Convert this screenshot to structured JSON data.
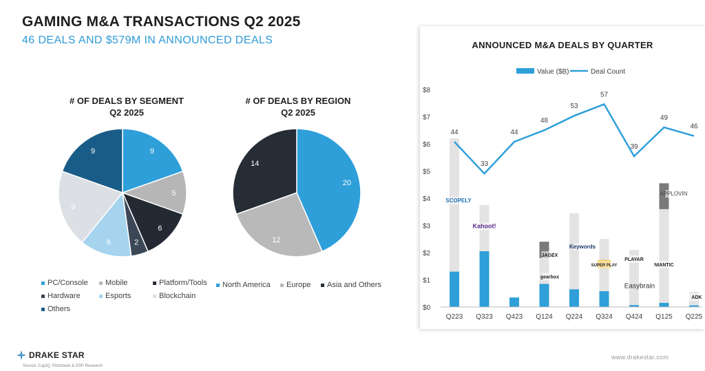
{
  "header": {
    "title": "GAMING M&A TRANSACTIONS Q2 2025",
    "subtitle": "46 DEALS AND $579M IN ANNOUNCED DEALS"
  },
  "footer": {
    "brand": "DRAKE STAR",
    "source": "Source: CapIQ, Pitchbook & DSP Research",
    "website": "www.drakestar.com"
  },
  "chart_data": [
    {
      "type": "pie",
      "title": "# OF DEALS BY SEGMENT\nQ2 2025",
      "title_lines": [
        "# OF DEALS BY SEGMENT",
        "Q2 2025"
      ],
      "start": "12 o'clock, clockwise",
      "slices": [
        {
          "label": "PC/Console",
          "value": 9,
          "color": "#2e9fd9"
        },
        {
          "label": "Mobile",
          "value": 5,
          "color": "#b6b6b6"
        },
        {
          "label": "Platform/Tools",
          "value": 6,
          "color": "#232a34"
        },
        {
          "label": "Hardware",
          "value": 2,
          "color": "#3b4656"
        },
        {
          "label": "Esports",
          "value": 6,
          "color": "#a6d4ef"
        },
        {
          "label": "Blockchain",
          "value": 9,
          "color": "#dcdfe3"
        },
        {
          "label": "Others",
          "value": 9,
          "color": "#1a5c88"
        }
      ],
      "legend": [
        "PC/Console",
        "Mobile",
        "Platform/Tools",
        "Hardware",
        "Esports",
        "Blockchain",
        "Others"
      ]
    },
    {
      "type": "pie",
      "title": "# OF DEALS BY REGION\nQ2 2025",
      "title_lines": [
        "# OF DEALS BY REGION",
        "Q2 2025"
      ],
      "start": "12 o'clock, clockwise",
      "slices": [
        {
          "label": "North America",
          "value": 20,
          "color": "#2e9fd9"
        },
        {
          "label": "Europe",
          "value": 12,
          "color": "#b9b9b9"
        },
        {
          "label": "Asia and Others",
          "value": 14,
          "color": "#262d37"
        }
      ],
      "legend": [
        "North America",
        "Europe",
        "Asia and Others"
      ]
    },
    {
      "type": "bar+line",
      "title": "ANNOUNCED M&A DEALS BY QUARTER",
      "categories": [
        "Q223",
        "Q323",
        "Q423",
        "Q124",
        "Q224",
        "Q324",
        "Q424",
        "Q125",
        "Q225"
      ],
      "series": [
        {
          "name": "Value ($B)",
          "type": "bar",
          "color": "#2e9fd9",
          "values": [
            1.3,
            2.05,
            0.35,
            0.85,
            0.65,
            0.58,
            0.07,
            0.15,
            0.06
          ]
        },
        {
          "name": "Deal Count",
          "type": "line",
          "color": "#2e9fd9",
          "values": [
            44,
            33,
            44,
            48,
            53,
            57,
            39,
            49,
            46
          ]
        }
      ],
      "total_values_background": [
        6.2,
        3.75,
        0.35,
        2.4,
        3.45,
        2.5,
        2.1,
        4.55,
        0.55
      ],
      "background_color": "#e3e3e3",
      "marker_color": "#7a7a7a",
      "marked_category_indices": [
        3,
        7
      ],
      "yticks": [
        "$0",
        "$1",
        "$2",
        "$3",
        "$4",
        "$5",
        "$6",
        "$7",
        "$8"
      ],
      "ylim": [
        0,
        8
      ],
      "line_ylim": [
        20,
        60
      ],
      "legend_position": "top",
      "annotations": [
        {
          "label": "SCOPELY",
          "category": "Q223",
          "value": 3.85,
          "style": "logo-blue"
        },
        {
          "label": "Kahoot!",
          "category": "Q323",
          "value": 2.9,
          "style": "logo-purple"
        },
        {
          "label": "JAGEX",
          "category": "Q124",
          "value": 1.85,
          "style": "logo-dark"
        },
        {
          "label": "gearbox",
          "category": "Q124",
          "value": 1.05,
          "style": "logo-dark"
        },
        {
          "label": "Keywords",
          "category": "Q224",
          "value": 2.15,
          "style": "logo-navy"
        },
        {
          "label": "SUPER PLAY",
          "category": "Q324",
          "value": 1.5,
          "style": "logo-yellow"
        },
        {
          "label": "PLAYAR",
          "category": "Q424",
          "value": 1.7,
          "style": "logo-dark"
        },
        {
          "label": "Easybrain",
          "category": "Q424",
          "value": 0.7,
          "style": "text"
        },
        {
          "label": "APPLOVIN",
          "category": "Q125",
          "value": 4.1,
          "style": "logo-gray"
        },
        {
          "label": "NIANTIC",
          "category": "Q125",
          "value": 1.5,
          "style": "logo-dark"
        },
        {
          "label": "ADK",
          "category": "Q225",
          "value": 0.3,
          "style": "logo-dark"
        }
      ]
    }
  ]
}
